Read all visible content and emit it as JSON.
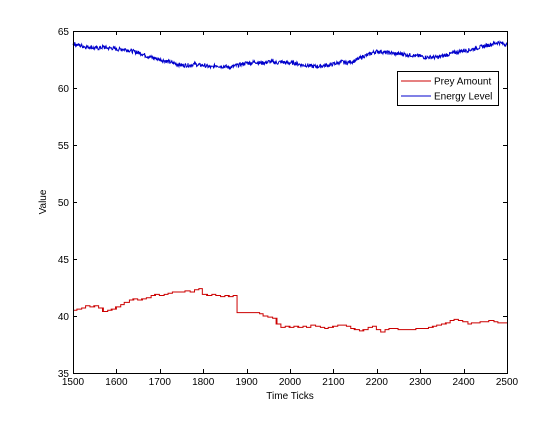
{
  "chart_data": {
    "type": "line",
    "title": "",
    "xlabel": "Time Ticks",
    "ylabel": "Value",
    "xlim": [
      1500,
      2500
    ],
    "ylim": [
      35,
      65
    ],
    "xticks": [
      1500,
      1600,
      1700,
      1800,
      1900,
      2000,
      2100,
      2200,
      2300,
      2400,
      2500
    ],
    "yticks": [
      35,
      40,
      45,
      50,
      55,
      60,
      65
    ],
    "grid": false,
    "legend_position": "top-right",
    "series": [
      {
        "name": "Prey Amount",
        "color": "#cc0000",
        "step": true,
        "x": [
          1500,
          1510,
          1520,
          1530,
          1540,
          1550,
          1560,
          1570,
          1580,
          1590,
          1600,
          1610,
          1620,
          1630,
          1640,
          1650,
          1660,
          1670,
          1680,
          1690,
          1700,
          1710,
          1720,
          1730,
          1740,
          1750,
          1760,
          1770,
          1780,
          1790,
          1800,
          1810,
          1820,
          1830,
          1840,
          1850,
          1860,
          1870,
          1880,
          1890,
          1900,
          1910,
          1920,
          1930,
          1940,
          1950,
          1960,
          1970,
          1980,
          1990,
          2000,
          2010,
          2020,
          2030,
          2040,
          2050,
          2060,
          2070,
          2080,
          2090,
          2100,
          2110,
          2120,
          2130,
          2140,
          2150,
          2160,
          2170,
          2180,
          2190,
          2200,
          2210,
          2220,
          2230,
          2240,
          2250,
          2260,
          2270,
          2280,
          2290,
          2300,
          2310,
          2320,
          2330,
          2340,
          2350,
          2360,
          2370,
          2380,
          2390,
          2400,
          2410,
          2420,
          2430,
          2440,
          2450,
          2460,
          2470,
          2480,
          2490,
          2500
        ],
        "values": [
          40.5,
          40.6,
          40.7,
          40.9,
          40.8,
          40.9,
          40.7,
          40.4,
          40.5,
          40.6,
          40.8,
          41.0,
          41.2,
          41.4,
          41.5,
          41.4,
          41.5,
          41.6,
          41.8,
          41.9,
          41.8,
          41.9,
          42.0,
          42.1,
          42.1,
          42.1,
          42.2,
          42.1,
          42.3,
          42.4,
          41.9,
          41.8,
          41.9,
          41.8,
          41.7,
          41.8,
          41.7,
          41.8,
          40.3,
          40.3,
          40.3,
          40.3,
          40.3,
          40.2,
          40.0,
          39.9,
          39.8,
          39.3,
          39.0,
          39.1,
          39.0,
          39.1,
          39.0,
          39.1,
          39.0,
          39.2,
          39.1,
          39.0,
          38.9,
          39.0,
          39.1,
          39.2,
          39.2,
          39.1,
          38.9,
          38.8,
          38.7,
          38.8,
          39.0,
          39.1,
          38.8,
          38.6,
          38.8,
          38.9,
          38.9,
          38.8,
          38.8,
          38.8,
          38.8,
          38.9,
          38.9,
          38.9,
          39.0,
          39.1,
          39.2,
          39.3,
          39.4,
          39.6,
          39.7,
          39.6,
          39.5,
          39.3,
          39.4,
          39.4,
          39.5,
          39.5,
          39.6,
          39.5,
          39.4,
          39.4,
          39.4
        ]
      },
      {
        "name": "Energy Level",
        "color": "#0000cc",
        "step": false,
        "x": [
          1500,
          1510,
          1520,
          1530,
          1540,
          1550,
          1560,
          1570,
          1580,
          1590,
          1600,
          1610,
          1620,
          1630,
          1640,
          1650,
          1660,
          1670,
          1680,
          1690,
          1700,
          1710,
          1720,
          1730,
          1740,
          1750,
          1760,
          1770,
          1780,
          1790,
          1800,
          1810,
          1820,
          1830,
          1840,
          1850,
          1860,
          1870,
          1880,
          1890,
          1900,
          1910,
          1920,
          1930,
          1940,
          1950,
          1960,
          1970,
          1980,
          1990,
          2000,
          2010,
          2020,
          2030,
          2040,
          2050,
          2060,
          2070,
          2080,
          2090,
          2100,
          2110,
          2120,
          2130,
          2140,
          2150,
          2160,
          2170,
          2180,
          2190,
          2200,
          2210,
          2220,
          2230,
          2240,
          2250,
          2260,
          2270,
          2280,
          2290,
          2300,
          2310,
          2320,
          2330,
          2340,
          2350,
          2360,
          2370,
          2380,
          2390,
          2400,
          2410,
          2420,
          2430,
          2440,
          2450,
          2460,
          2470,
          2480,
          2490,
          2500
        ],
        "values": [
          63.9,
          63.8,
          63.7,
          63.6,
          63.6,
          63.5,
          63.5,
          63.6,
          63.5,
          63.5,
          63.4,
          63.4,
          63.4,
          63.3,
          63.2,
          63.1,
          63.0,
          62.8,
          62.7,
          62.6,
          62.5,
          62.4,
          62.3,
          62.2,
          62.1,
          62.0,
          62.0,
          62.0,
          62.1,
          62.0,
          62.0,
          61.9,
          61.8,
          62.0,
          61.9,
          61.9,
          61.8,
          61.9,
          62.0,
          62.1,
          62.2,
          62.2,
          62.3,
          62.2,
          62.2,
          62.3,
          62.3,
          62.2,
          62.3,
          62.2,
          62.2,
          62.2,
          62.1,
          62.0,
          62.0,
          61.9,
          61.9,
          61.9,
          62.0,
          62.0,
          62.1,
          62.2,
          62.3,
          62.2,
          62.3,
          62.4,
          62.6,
          62.8,
          62.9,
          63.1,
          63.2,
          63.2,
          63.1,
          63.1,
          63.0,
          63.0,
          63.0,
          62.9,
          62.9,
          62.8,
          62.8,
          62.7,
          62.7,
          62.7,
          62.7,
          62.8,
          62.9,
          63.0,
          63.1,
          63.2,
          63.3,
          63.3,
          63.4,
          63.5,
          63.6,
          63.7,
          63.8,
          63.9,
          64.0,
          63.9,
          63.8
        ]
      }
    ]
  }
}
